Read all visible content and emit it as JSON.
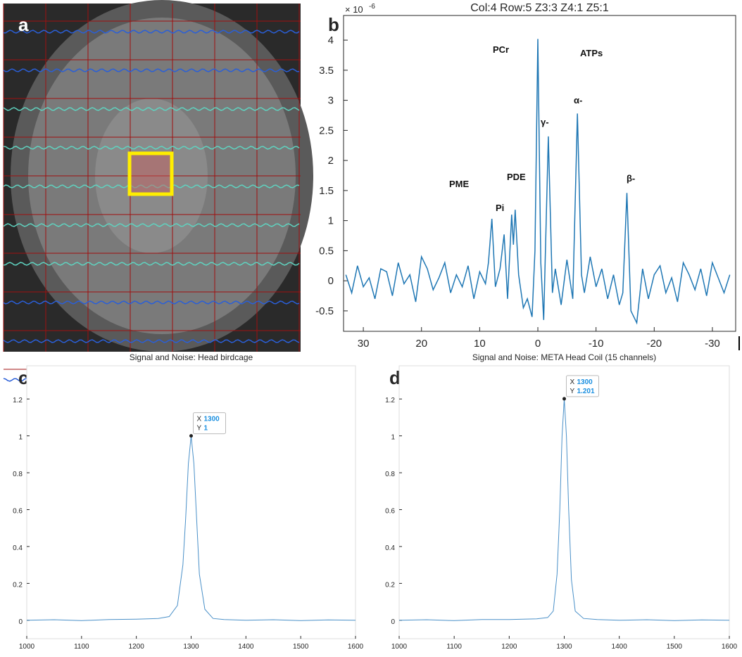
{
  "panel_labels": [
    "a",
    "b",
    "c",
    "d"
  ],
  "chart_data": [
    {
      "type": "line",
      "title": "Col:4 Row:5    Z3:3  Z4:1  Z5:1",
      "y_multiplier": {
        "base": "× 10",
        "exponent": "-6"
      },
      "color": "#1f77b4",
      "xlim": [
        33.4,
        -34
      ],
      "xticks": [
        30,
        20,
        10,
        0,
        -10,
        -20,
        -30
      ],
      "ylim": [
        -0.84,
        4.41
      ],
      "yticks": [
        -0.5,
        0,
        0.5,
        1,
        1.5,
        2,
        2.5,
        3,
        3.5,
        4
      ],
      "x": [
        33,
        32,
        31,
        30,
        29,
        28,
        27,
        26,
        25,
        24,
        23,
        22,
        21,
        20,
        19,
        18,
        17,
        16,
        15,
        14,
        13,
        12,
        11,
        10,
        9,
        8.5,
        7.9,
        7.3,
        6.5,
        5.8,
        5.2,
        4.5,
        4.2,
        3.9,
        3.3,
        2.5,
        1.8,
        1,
        0.5,
        0,
        -0.5,
        -1,
        -1.8,
        -2.5,
        -3,
        -4,
        -5,
        -6,
        -6.8,
        -7.5,
        -8,
        -9,
        -10,
        -11,
        -12,
        -13,
        -14,
        -14.6,
        -15.3,
        -16,
        -17,
        -18,
        -19,
        -20,
        -21,
        -22,
        -23,
        -24,
        -25,
        -26,
        -27,
        -28,
        -29,
        -30,
        -31,
        -32,
        -33
      ],
      "values": [
        0.1,
        -0.2,
        0.25,
        -0.1,
        0.05,
        -0.3,
        0.2,
        0.15,
        -0.25,
        0.3,
        -0.05,
        0.1,
        -0.35,
        0.4,
        0.2,
        -0.15,
        0.05,
        0.3,
        -0.2,
        0.1,
        -0.1,
        0.25,
        -0.3,
        0.15,
        -0.05,
        0.3,
        1.03,
        -0.1,
        0.2,
        0.77,
        -0.3,
        1.1,
        0.6,
        1.18,
        0.1,
        -0.45,
        -0.3,
        -0.6,
        0.5,
        4.02,
        0.3,
        -0.65,
        2.4,
        -0.2,
        0.2,
        -0.4,
        0.35,
        -0.3,
        2.78,
        0.1,
        -0.2,
        0.4,
        -0.1,
        0.2,
        -0.3,
        0.1,
        -0.4,
        -0.2,
        1.46,
        -0.5,
        -0.7,
        0.2,
        -0.3,
        0.1,
        0.25,
        -0.2,
        0.05,
        -0.35,
        0.3,
        0.1,
        -0.15,
        0.2,
        -0.25,
        0.3,
        0.05,
        -0.2,
        0.1
      ],
      "annotations": [
        "PCr",
        "ATPs",
        "γ-",
        "α-",
        "β-",
        "PME",
        "Pi",
        "PDE"
      ]
    },
    {
      "type": "line",
      "title": "Signal and Noise: Head birdcage",
      "color": "#4a90c8",
      "xlim": [
        1000,
        1600
      ],
      "xticks": [
        1000,
        1100,
        1200,
        1300,
        1400,
        1500,
        1600
      ],
      "ylim": [
        -0.1,
        1.38
      ],
      "yticks": [
        0,
        0.2,
        0.4,
        0.6,
        0.8,
        1,
        1.2
      ],
      "x": [
        1000,
        1050,
        1100,
        1150,
        1200,
        1240,
        1260,
        1275,
        1285,
        1290,
        1295,
        1300,
        1305,
        1310,
        1315,
        1325,
        1340,
        1360,
        1400,
        1450,
        1500,
        1550,
        1600
      ],
      "values": [
        0,
        0.003,
        -0.002,
        0.004,
        0.006,
        0.01,
        0.02,
        0.08,
        0.3,
        0.55,
        0.85,
        1,
        0.85,
        0.55,
        0.25,
        0.06,
        0.01,
        0.004,
        0,
        0.003,
        -0.002,
        0.002,
        0
      ],
      "datatip": {
        "x_label": "X",
        "y_label": "Y",
        "x": 1300,
        "y": 1
      }
    },
    {
      "type": "line",
      "title": "Signal and Noise: META Head Coil (15 channels)",
      "color": "#4a90c8",
      "xlim": [
        1000,
        1600
      ],
      "xticks": [
        1000,
        1100,
        1200,
        1300,
        1400,
        1500,
        1600
      ],
      "ylim": [
        -0.1,
        1.38
      ],
      "yticks": [
        0,
        0.2,
        0.4,
        0.6,
        0.8,
        1,
        1.2
      ],
      "x": [
        1000,
        1050,
        1100,
        1150,
        1200,
        1250,
        1270,
        1280,
        1287,
        1292,
        1296,
        1300,
        1304,
        1308,
        1313,
        1320,
        1335,
        1360,
        1400,
        1450,
        1500,
        1550,
        1600
      ],
      "values": [
        0,
        0.003,
        -0.002,
        0.004,
        0.004,
        0.008,
        0.015,
        0.05,
        0.25,
        0.6,
        1,
        1.201,
        1,
        0.6,
        0.22,
        0.05,
        0.01,
        0.004,
        0,
        0.003,
        -0.002,
        0.002,
        0
      ],
      "datatip": {
        "x_label": "X",
        "y_label": "Y",
        "x": 1300,
        "y": 1.201
      }
    }
  ]
}
